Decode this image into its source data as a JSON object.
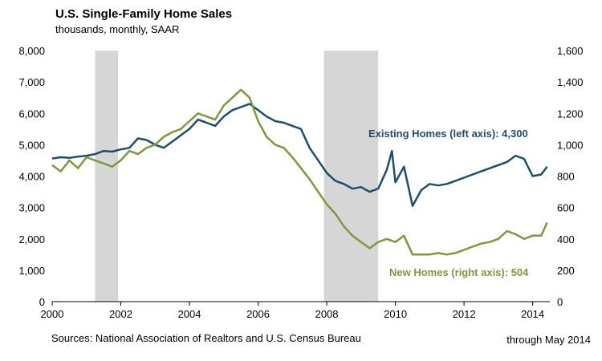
{
  "chart_data": {
    "type": "line",
    "title": "U.S. Single-Family Home Sales",
    "subtitle": "thousands, monthly, SAAR",
    "source": "Sources: National Association of Realtors and U.S. Census Bureau",
    "note": "through May 2014",
    "x_range": [
      2000,
      2014.5
    ],
    "x_ticks": [
      "2000",
      "2002",
      "2004",
      "2006",
      "2008",
      "2010",
      "2012",
      "2014"
    ],
    "ylim_left": [
      0,
      8000
    ],
    "ylim_right": [
      0,
      1600
    ],
    "y_ticks_left": [
      "0",
      "1,000",
      "2,000",
      "3,000",
      "4,000",
      "5,000",
      "6,000",
      "7,000",
      "8,000"
    ],
    "y_ticks_right": [
      "0",
      "200",
      "400",
      "600",
      "800",
      "1,000",
      "1,200",
      "1,400",
      "1,600"
    ],
    "recessions": [
      [
        2001.25,
        2001.92
      ],
      [
        2007.92,
        2009.5
      ]
    ],
    "grid": false,
    "series": [
      {
        "name": "Existing Homes (left axis): 4,300",
        "axis": "left",
        "color": "#1f4e6b",
        "points": [
          [
            2000.0,
            4560
          ],
          [
            2000.25,
            4600
          ],
          [
            2000.5,
            4580
          ],
          [
            2000.75,
            4620
          ],
          [
            2001.0,
            4650
          ],
          [
            2001.25,
            4700
          ],
          [
            2001.5,
            4800
          ],
          [
            2001.75,
            4780
          ],
          [
            2002.0,
            4850
          ],
          [
            2002.25,
            4900
          ],
          [
            2002.5,
            5200
          ],
          [
            2002.75,
            5150
          ],
          [
            2003.0,
            5000
          ],
          [
            2003.25,
            4900
          ],
          [
            2003.5,
            5100
          ],
          [
            2003.75,
            5300
          ],
          [
            2004.0,
            5500
          ],
          [
            2004.25,
            5800
          ],
          [
            2004.5,
            5700
          ],
          [
            2004.75,
            5600
          ],
          [
            2005.0,
            5900
          ],
          [
            2005.25,
            6100
          ],
          [
            2005.5,
            6200
          ],
          [
            2005.75,
            6300
          ],
          [
            2006.0,
            6100
          ],
          [
            2006.25,
            5900
          ],
          [
            2006.5,
            5750
          ],
          [
            2006.75,
            5700
          ],
          [
            2007.0,
            5600
          ],
          [
            2007.25,
            5500
          ],
          [
            2007.5,
            4900
          ],
          [
            2007.75,
            4500
          ],
          [
            2008.0,
            4100
          ],
          [
            2008.25,
            3850
          ],
          [
            2008.5,
            3750
          ],
          [
            2008.75,
            3600
          ],
          [
            2009.0,
            3650
          ],
          [
            2009.25,
            3500
          ],
          [
            2009.5,
            3600
          ],
          [
            2009.75,
            4200
          ],
          [
            2009.9,
            4800
          ],
          [
            2010.0,
            3800
          ],
          [
            2010.25,
            4300
          ],
          [
            2010.5,
            3050
          ],
          [
            2010.75,
            3550
          ],
          [
            2011.0,
            3750
          ],
          [
            2011.25,
            3700
          ],
          [
            2011.5,
            3750
          ],
          [
            2011.75,
            3850
          ],
          [
            2012.0,
            3950
          ],
          [
            2012.25,
            4050
          ],
          [
            2012.5,
            4150
          ],
          [
            2012.75,
            4250
          ],
          [
            2013.0,
            4350
          ],
          [
            2013.25,
            4450
          ],
          [
            2013.5,
            4650
          ],
          [
            2013.75,
            4550
          ],
          [
            2014.0,
            4000
          ],
          [
            2014.25,
            4050
          ],
          [
            2014.42,
            4300
          ]
        ]
      },
      {
        "name": "New Homes (right axis): 504",
        "axis": "right",
        "color": "#7b9a3f",
        "points": [
          [
            2000.0,
            870
          ],
          [
            2000.25,
            830
          ],
          [
            2000.5,
            900
          ],
          [
            2000.75,
            850
          ],
          [
            2001.0,
            920
          ],
          [
            2001.25,
            900
          ],
          [
            2001.5,
            880
          ],
          [
            2001.75,
            860
          ],
          [
            2002.0,
            900
          ],
          [
            2002.25,
            960
          ],
          [
            2002.5,
            940
          ],
          [
            2002.75,
            980
          ],
          [
            2003.0,
            1000
          ],
          [
            2003.25,
            1050
          ],
          [
            2003.5,
            1080
          ],
          [
            2003.75,
            1100
          ],
          [
            2004.0,
            1150
          ],
          [
            2004.25,
            1200
          ],
          [
            2004.5,
            1180
          ],
          [
            2004.75,
            1160
          ],
          [
            2005.0,
            1250
          ],
          [
            2005.25,
            1300
          ],
          [
            2005.5,
            1350
          ],
          [
            2005.75,
            1300
          ],
          [
            2006.0,
            1150
          ],
          [
            2006.25,
            1050
          ],
          [
            2006.5,
            1000
          ],
          [
            2006.75,
            980
          ],
          [
            2007.0,
            920
          ],
          [
            2007.25,
            850
          ],
          [
            2007.5,
            780
          ],
          [
            2007.75,
            700
          ],
          [
            2008.0,
            620
          ],
          [
            2008.25,
            560
          ],
          [
            2008.5,
            480
          ],
          [
            2008.75,
            420
          ],
          [
            2009.0,
            380
          ],
          [
            2009.25,
            340
          ],
          [
            2009.5,
            380
          ],
          [
            2009.75,
            400
          ],
          [
            2010.0,
            380
          ],
          [
            2010.25,
            420
          ],
          [
            2010.5,
            300
          ],
          [
            2010.75,
            300
          ],
          [
            2011.0,
            300
          ],
          [
            2011.25,
            310
          ],
          [
            2011.5,
            300
          ],
          [
            2011.75,
            310
          ],
          [
            2012.0,
            330
          ],
          [
            2012.25,
            350
          ],
          [
            2012.5,
            370
          ],
          [
            2012.75,
            380
          ],
          [
            2013.0,
            400
          ],
          [
            2013.25,
            450
          ],
          [
            2013.5,
            430
          ],
          [
            2013.75,
            400
          ],
          [
            2014.0,
            420
          ],
          [
            2014.25,
            420
          ],
          [
            2014.42,
            504
          ]
        ]
      }
    ]
  }
}
